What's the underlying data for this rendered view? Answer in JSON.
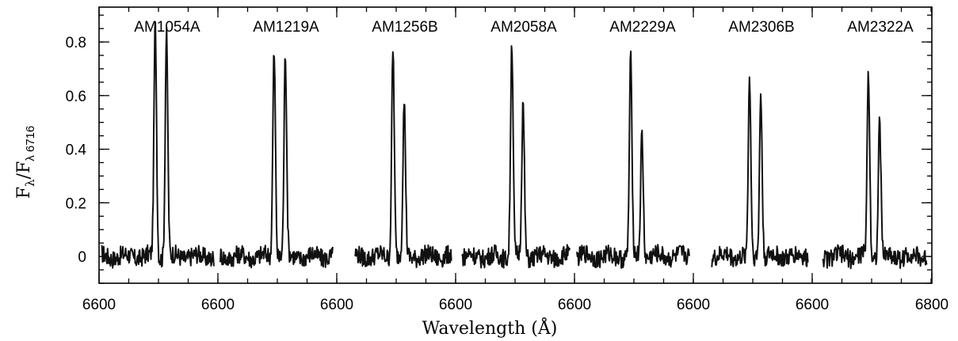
{
  "chart_data": {
    "type": "line",
    "title": "",
    "xlabel": "Wavelength (Å)",
    "ylabel_main": "F",
    "ylabel_sub1": "λ",
    "ylabel_sep": "/F",
    "ylabel_sub2": "λ 6716",
    "ylim": [
      -0.1,
      0.93
    ],
    "yticks": [
      "0",
      "0.2",
      "0.4",
      "0.6",
      "0.8"
    ],
    "ytick_values": [
      0,
      0.2,
      0.4,
      0.6,
      0.8
    ],
    "xticks": [
      "6600",
      "6600",
      "6600",
      "6600",
      "6600",
      "6600",
      "6600",
      "6800"
    ],
    "panel_wavelength_range": [
      6647,
      6795
    ],
    "panels": [
      {
        "name": "AM1054A",
        "peaks": [
          0.86,
          0.83
        ],
        "wave_start": 6650,
        "wave_end": 6790
      },
      {
        "name": "AM1219A",
        "peaks": [
          0.77,
          0.75
        ],
        "wave_start": 6650,
        "wave_end": 6790
      },
      {
        "name": "AM1256B",
        "peaks": [
          0.78,
          0.57
        ],
        "wave_start": 6670,
        "wave_end": 6790
      },
      {
        "name": "AM2058A",
        "peaks": [
          0.8,
          0.57
        ],
        "wave_start": 6655,
        "wave_end": 6790
      },
      {
        "name": "AM2229A",
        "peaks": [
          0.73,
          0.46
        ],
        "wave_start": 6650,
        "wave_end": 6790
      },
      {
        "name": "AM2306B",
        "peaks": [
          0.65,
          0.61
        ],
        "wave_start": 6670,
        "wave_end": 6790
      },
      {
        "name": "AM2322A",
        "peaks": [
          0.68,
          0.51
        ],
        "wave_start": 6660,
        "wave_end": 6790
      }
    ],
    "line_centers": [
      6717,
      6731
    ],
    "grid": false,
    "legend": "none"
  }
}
